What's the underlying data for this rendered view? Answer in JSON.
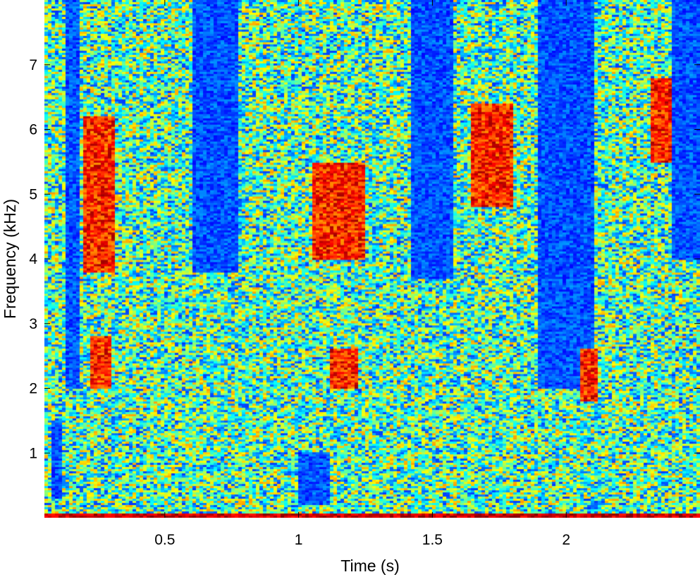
{
  "chart_data": {
    "type": "heatmap",
    "title": "",
    "xlabel": "Time (s)",
    "ylabel": "Frequency (kHz)",
    "xlim": [
      0.05,
      2.5
    ],
    "ylim": [
      0,
      8
    ],
    "x_ticks": [
      0.5,
      1,
      1.5,
      2
    ],
    "x_tick_labels": [
      "0.5",
      "1",
      "1.5",
      "2"
    ],
    "y_ticks": [
      1,
      2,
      3,
      4,
      5,
      6,
      7
    ],
    "y_tick_labels": [
      "1",
      "2",
      "3",
      "4",
      "5",
      "6",
      "7"
    ],
    "colormap": "jet",
    "grid": false,
    "low_energy_regions": [
      {
        "t": [
          0.13,
          0.18
        ],
        "f": [
          2.0,
          8.0
        ]
      },
      {
        "t": [
          0.6,
          0.78
        ],
        "f": [
          3.8,
          8.0
        ]
      },
      {
        "t": [
          1.42,
          1.58
        ],
        "f": [
          3.7,
          8.0
        ]
      },
      {
        "t": [
          1.9,
          2.1
        ],
        "f": [
          2.0,
          8.0
        ]
      },
      {
        "t": [
          2.4,
          2.5
        ],
        "f": [
          4.0,
          8.0
        ]
      },
      {
        "t": [
          0.08,
          0.12
        ],
        "f": [
          0.3,
          1.5
        ]
      },
      {
        "t": [
          1.0,
          1.12
        ],
        "f": [
          0.2,
          1.0
        ]
      }
    ],
    "high_energy_regions": [
      {
        "t": [
          0.2,
          0.32
        ],
        "f": [
          3.8,
          6.2
        ]
      },
      {
        "t": [
          0.22,
          0.3
        ],
        "f": [
          2.0,
          2.8
        ]
      },
      {
        "t": [
          1.05,
          1.25
        ],
        "f": [
          4.0,
          5.5
        ]
      },
      {
        "t": [
          1.12,
          1.22
        ],
        "f": [
          2.0,
          2.6
        ]
      },
      {
        "t": [
          1.65,
          1.8
        ],
        "f": [
          4.8,
          6.4
        ]
      },
      {
        "t": [
          2.32,
          2.4
        ],
        "f": [
          5.5,
          6.8
        ]
      },
      {
        "t": [
          2.05,
          2.12
        ],
        "f": [
          1.8,
          2.6
        ]
      }
    ]
  }
}
